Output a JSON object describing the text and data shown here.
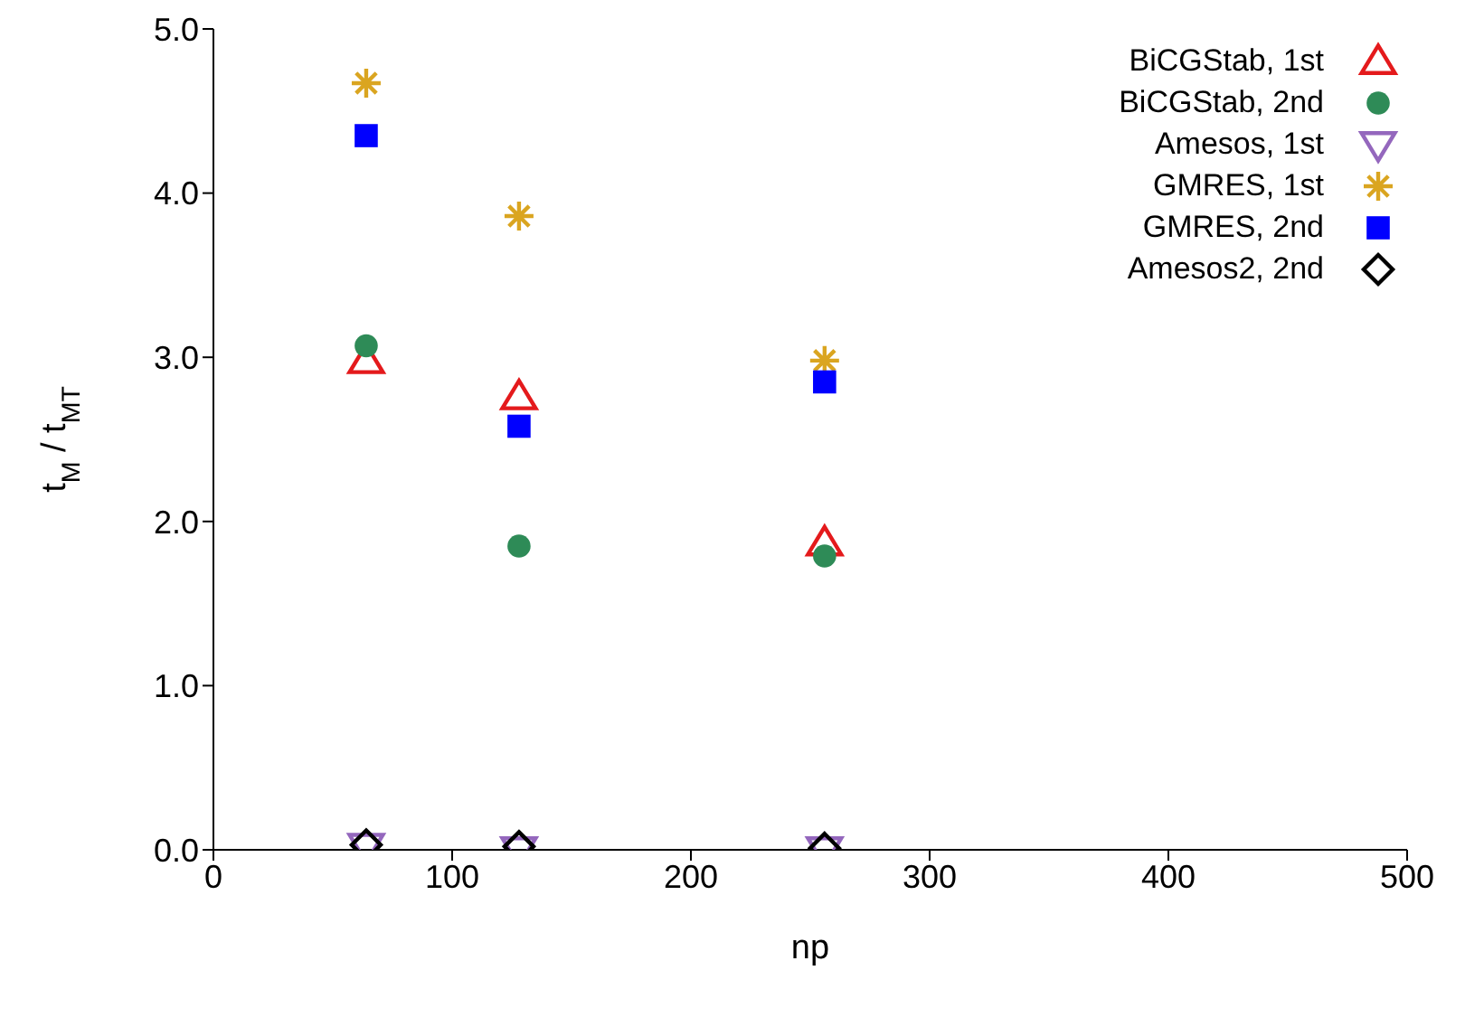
{
  "chart_data": {
    "type": "scatter",
    "xlabel": "np",
    "ylabel": "t$_{M}$ / t$_{MT}$",
    "x": [
      64,
      128,
      256
    ],
    "series": [
      {
        "name": "BiCGStab, 1st",
        "color": "#e41a1c",
        "marker": "triangle",
        "values": [
          2.98,
          2.76,
          1.87
        ]
      },
      {
        "name": "BiCGStab, 2nd",
        "color": "#2e8b57",
        "marker": "circle",
        "values": [
          3.07,
          1.85,
          1.79
        ]
      },
      {
        "name": "Amesos, 1st",
        "color": "#9467bd",
        "marker": "triangle-down",
        "values": [
          0.02,
          0.0,
          0.0
        ]
      },
      {
        "name": "GMRES, 1st",
        "color": "#daa520",
        "marker": "cross",
        "values": [
          4.67,
          3.86,
          2.98
        ]
      },
      {
        "name": "GMRES, 2nd",
        "color": "#0000ff",
        "marker": "square",
        "values": [
          4.35,
          2.58,
          2.85
        ]
      },
      {
        "name": "Amesos2, 2nd",
        "color": "#000000",
        "marker": "diamond",
        "values": [
          0.03,
          0.02,
          0.01
        ]
      }
    ],
    "xlim": [
      0,
      500
    ],
    "xticks": [
      0,
      100,
      200,
      300,
      400,
      500
    ],
    "ylim": [
      0,
      5
    ],
    "yticks": [
      {
        "value": 0,
        "label": "0.0"
      },
      {
        "value": 1,
        "label": "1.0"
      },
      {
        "value": 2,
        "label": "2.0"
      },
      {
        "value": 3,
        "label": "3.0"
      },
      {
        "value": 4,
        "label": "4.0"
      },
      {
        "value": 5,
        "label": "5.0"
      }
    ],
    "legend": "top right",
    "grid": false
  }
}
